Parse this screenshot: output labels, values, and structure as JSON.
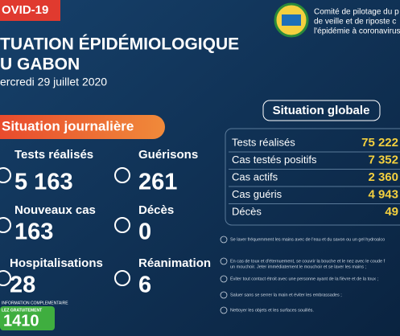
{
  "header": {
    "tag": "OVID-19",
    "title_lines": [
      "TUATION ÉPIDÉMIOLOGIQUE",
      "U GABON"
    ],
    "date": "ercredi 29 juillet 2020",
    "committee_lines": [
      "Comité de pilotage du p",
      "de veille et de riposte c",
      "l'épidémie à coronavirus"
    ]
  },
  "daily": {
    "title": "Situation journalière",
    "items": [
      {
        "label": "Tests réalisés",
        "value": "5 163"
      },
      {
        "label": "Guérisons",
        "value": "261"
      },
      {
        "label": "Nouveaux cas",
        "value": "163"
      },
      {
        "label": "Décès",
        "value": "0"
      },
      {
        "label": "Hospitalisations",
        "value": "28"
      },
      {
        "label": "Réanimation",
        "value": "6"
      }
    ]
  },
  "global": {
    "title": "Situation globale",
    "rows": [
      [
        "Tests réalisés",
        "75 222"
      ],
      [
        "Cas testés positifs",
        "7 352"
      ],
      [
        "Cas actifs",
        "2 360"
      ],
      [
        "Cas guéris",
        "4 943"
      ],
      [
        "Décès",
        "49"
      ]
    ]
  },
  "hotline": {
    "note": "INFORMATION COMPLEMENTAIRE",
    "call": "LEZ GRATUITEMENT",
    "number": "1410"
  },
  "advice": [
    "Se laver fréquemment les mains avec de l'eau et du savon ou un gel hydroalco",
    "En cas de toux et d'éternuement, se couvrir la bouche et le nez avec le coude f",
    "un mouchoir. Jeter immédiatement le mouchoir et se laver les mains ;",
    "Éviter tout contact étroit avec une personne ayant de la fièvre et de la toux ;",
    "Saluer sans se serrer la main et éviter les embrassades ;",
    "Nettoyer les objets et les surfaces souillés."
  ]
}
